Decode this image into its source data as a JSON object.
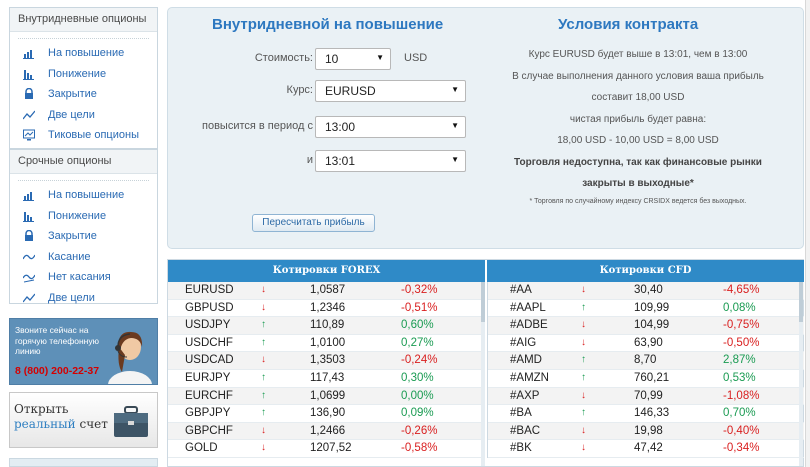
{
  "sidebar": {
    "group1": {
      "title": "Внутридневные опционы",
      "items": [
        {
          "label": "На повышение",
          "icon": "chart-up-icon"
        },
        {
          "label": "Понижение",
          "icon": "chart-down-icon"
        },
        {
          "label": "Закрытие",
          "icon": "lock-icon"
        },
        {
          "label": "Две цели",
          "icon": "line-chart-icon"
        },
        {
          "label": "Тиковые опционы",
          "icon": "monitor-icon"
        }
      ]
    },
    "group2": {
      "title": "Срочные опционы",
      "items": [
        {
          "label": "На повышение",
          "icon": "chart-up-icon"
        },
        {
          "label": "Понижение",
          "icon": "chart-down-icon"
        },
        {
          "label": "Закрытие",
          "icon": "lock-icon"
        },
        {
          "label": "Касание",
          "icon": "touch-wave-icon"
        },
        {
          "label": "Нет касания",
          "icon": "no-touch-icon"
        },
        {
          "label": "Две цели",
          "icon": "line-chart-icon"
        }
      ]
    }
  },
  "promo": {
    "hotline_text": "Звоните сейчас на горячую телефонную линию",
    "hotline_phone": "8 (800) 200-22-37",
    "account_line1": "Открыть",
    "account_word_real": "реальный",
    "account_word_account": "счет"
  },
  "form": {
    "title": "Внутридневной на повышение",
    "stake_label": "Стоимость:",
    "stake_value": "10",
    "stake_unit": "USD",
    "asset_label": "Курс:",
    "asset_value": "EURUSD",
    "period_label": "повысится в период с",
    "period_from": "13:00",
    "and_label": "и",
    "period_to": "13:01",
    "recalc_label": "Пересчитать прибыль"
  },
  "conditions": {
    "title": "Условия контракта",
    "line1": "Курс EURUSD будет выше в 13:01, чем в 13:00",
    "line2": "В случае выполнения данного условия ваша прибыль",
    "line3": "составит 18,00 USD",
    "line4": "чистая прибыль будет равна:",
    "line5": "18,00 USD - 10,00 USD = 8,00 USD",
    "warning1": "Торговля недоступна, так как финансовые рынки",
    "warning2": "закрыты в выходные*",
    "footnote": "* Торговля по случайному индексу CRSIDX ведется без выходных."
  },
  "quotes": {
    "forex_title": "Котировки FOREX",
    "cfd_title": "Котировки CFD",
    "colors": {
      "up": "#1a9b52",
      "down": "#d91f1f",
      "header": "#2f8ac7"
    },
    "forex": [
      {
        "symbol": "EURUSD",
        "dir": "down",
        "value": "1,0587",
        "change": "-0,32%"
      },
      {
        "symbol": "GBPUSD",
        "dir": "down",
        "value": "1,2346",
        "change": "-0,51%"
      },
      {
        "symbol": "USDJPY",
        "dir": "up",
        "value": "110,89",
        "change": "0,60%"
      },
      {
        "symbol": "USDCHF",
        "dir": "up",
        "value": "1,0100",
        "change": "0,27%"
      },
      {
        "symbol": "USDCAD",
        "dir": "down",
        "value": "1,3503",
        "change": "-0,24%"
      },
      {
        "symbol": "EURJPY",
        "dir": "up",
        "value": "117,43",
        "change": "0,30%"
      },
      {
        "symbol": "EURCHF",
        "dir": "up",
        "value": "1,0699",
        "change": "0,00%"
      },
      {
        "symbol": "GBPJPY",
        "dir": "up",
        "value": "136,90",
        "change": "0,09%"
      },
      {
        "symbol": "GBPCHF",
        "dir": "down",
        "value": "1,2466",
        "change": "-0,26%"
      },
      {
        "symbol": "GOLD",
        "dir": "down",
        "value": "1207,52",
        "change": "-0,58%"
      }
    ],
    "cfd": [
      {
        "symbol": "#AA",
        "dir": "down",
        "value": "30,40",
        "change": "-4,65%"
      },
      {
        "symbol": "#AAPL",
        "dir": "up",
        "value": "109,99",
        "change": "0,08%"
      },
      {
        "symbol": "#ADBE",
        "dir": "down",
        "value": "104,99",
        "change": "-0,75%"
      },
      {
        "symbol": "#AIG",
        "dir": "down",
        "value": "63,90",
        "change": "-0,50%"
      },
      {
        "symbol": "#AMD",
        "dir": "up",
        "value": "8,70",
        "change": "2,87%"
      },
      {
        "symbol": "#AMZN",
        "dir": "up",
        "value": "760,21",
        "change": "0,53%"
      },
      {
        "symbol": "#AXP",
        "dir": "down",
        "value": "70,99",
        "change": "-1,08%"
      },
      {
        "symbol": "#BA",
        "dir": "up",
        "value": "146,33",
        "change": "0,70%"
      },
      {
        "symbol": "#BAC",
        "dir": "down",
        "value": "19,98",
        "change": "-0,40%"
      },
      {
        "symbol": "#BK",
        "dir": "down",
        "value": "47,42",
        "change": "-0,34%"
      }
    ]
  }
}
